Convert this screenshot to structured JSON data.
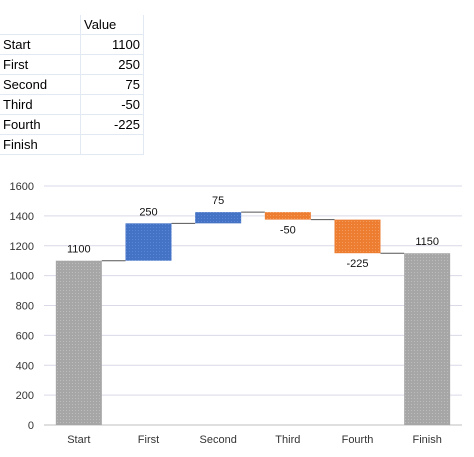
{
  "table": {
    "header_label": "",
    "header_value": "Value",
    "rows": [
      {
        "label": "Start",
        "value": "1100"
      },
      {
        "label": "First",
        "value": "250"
      },
      {
        "label": "Second",
        "value": "75"
      },
      {
        "label": "Third",
        "value": "-50"
      },
      {
        "label": "Fourth",
        "value": "-225"
      },
      {
        "label": "Finish",
        "value": ""
      }
    ]
  },
  "chart_data": {
    "type": "bar",
    "subtype": "waterfall",
    "categories": [
      "Start",
      "First",
      "Second",
      "Third",
      "Fourth",
      "Finish"
    ],
    "values": [
      1100,
      250,
      75,
      -50,
      -225,
      1150
    ],
    "data_labels": [
      "1100",
      "250",
      "75",
      "-50",
      "-225",
      "1150"
    ],
    "kinds": [
      "total",
      "increase",
      "increase",
      "decrease",
      "decrease",
      "total"
    ],
    "colors": {
      "total": "#a6a6a6",
      "increase": "#4472c4",
      "decrease": "#ed7d31",
      "connector": "#555555",
      "grid": "#d9d9e8"
    },
    "title": "",
    "xlabel": "",
    "ylabel": "",
    "ylim": [
      0,
      1600
    ],
    "yticks": [
      0,
      200,
      400,
      600,
      800,
      1000,
      1200,
      1400,
      1600
    ],
    "grid": true,
    "legend": "none"
  }
}
